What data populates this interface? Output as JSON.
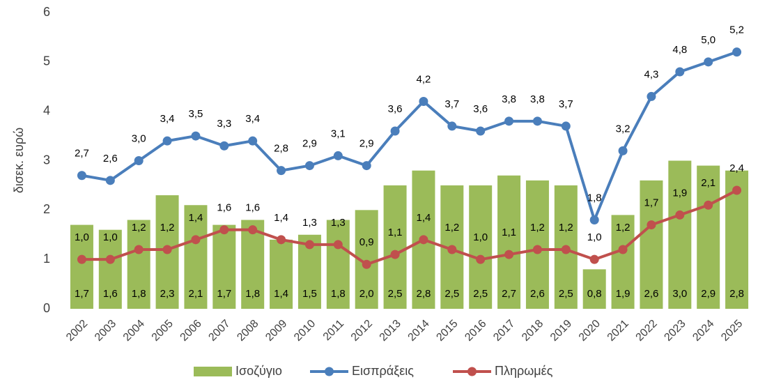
{
  "chart_data": {
    "type": "combo",
    "y_label": "δισεκ. ευρώ",
    "categories": [
      "2002",
      "2003",
      "2004",
      "2005",
      "2006",
      "2007",
      "2008",
      "2009",
      "2010",
      "2011",
      "2012",
      "2013",
      "2014",
      "2015",
      "2016",
      "2017",
      "2018",
      "2019",
      "2020",
      "2021",
      "2022",
      "2023",
      "2024",
      "2025"
    ],
    "series": [
      {
        "name": "Ισοζύγιο",
        "type": "bar",
        "color": "#9bbb59",
        "values": [
          1.7,
          1.6,
          1.8,
          2.3,
          2.1,
          1.7,
          1.8,
          1.4,
          1.5,
          1.8,
          2.0,
          2.5,
          2.8,
          2.5,
          2.5,
          2.7,
          2.6,
          2.5,
          0.8,
          1.9,
          2.6,
          3.0,
          2.9,
          2.8
        ],
        "value_labels": [
          "1,7",
          "1,6",
          "1,8",
          "2,3",
          "2,1",
          "1,7",
          "1,8",
          "1,4",
          "1,5",
          "1,8",
          "2,0",
          "2,5",
          "2,8",
          "2,5",
          "2,5",
          "2,7",
          "2,6",
          "2,5",
          "0,8",
          "1,9",
          "2,6",
          "3,0",
          "2,9",
          "2,8"
        ]
      },
      {
        "name": "Εισπράξεις",
        "type": "line",
        "color": "#4a7ebb",
        "values": [
          2.7,
          2.6,
          3.0,
          3.4,
          3.5,
          3.3,
          3.4,
          2.8,
          2.9,
          3.1,
          2.9,
          3.6,
          4.2,
          3.7,
          3.6,
          3.8,
          3.8,
          3.7,
          1.8,
          3.2,
          4.3,
          4.8,
          5.0,
          5.2
        ],
        "value_labels": [
          "2,7",
          "2,6",
          "3,0",
          "3,4",
          "3,5",
          "3,3",
          "3,4",
          "2,8",
          "2,9",
          "3,1",
          "2,9",
          "3,6",
          "4,2",
          "3,7",
          "3,6",
          "3,8",
          "3,8",
          "3,7",
          "1,8",
          "3,2",
          "4,3",
          "4,8",
          "5,0",
          "5,2"
        ]
      },
      {
        "name": "Πληρωμές",
        "type": "line",
        "color": "#c0504d",
        "values": [
          1.0,
          1.0,
          1.2,
          1.2,
          1.4,
          1.6,
          1.6,
          1.4,
          1.3,
          1.3,
          0.9,
          1.1,
          1.4,
          1.2,
          1.0,
          1.1,
          1.2,
          1.2,
          1.0,
          1.2,
          1.7,
          1.9,
          2.1,
          2.4
        ],
        "value_labels": [
          "1,0",
          "1,0",
          "1,2",
          "1,2",
          "1,4",
          "1,6",
          "1,6",
          "1,4",
          "1,3",
          "1,3",
          "0,9",
          "1,1",
          "1,4",
          "1,2",
          "1,0",
          "1,1",
          "1,2",
          "1,2",
          "1,0",
          "1,2",
          "1,7",
          "1,9",
          "2,1",
          "2,4"
        ]
      }
    ],
    "ylim": [
      0,
      6
    ],
    "yticks": [
      0,
      1,
      2,
      3,
      4,
      5,
      6
    ],
    "grid": false,
    "legend": "bottom"
  }
}
